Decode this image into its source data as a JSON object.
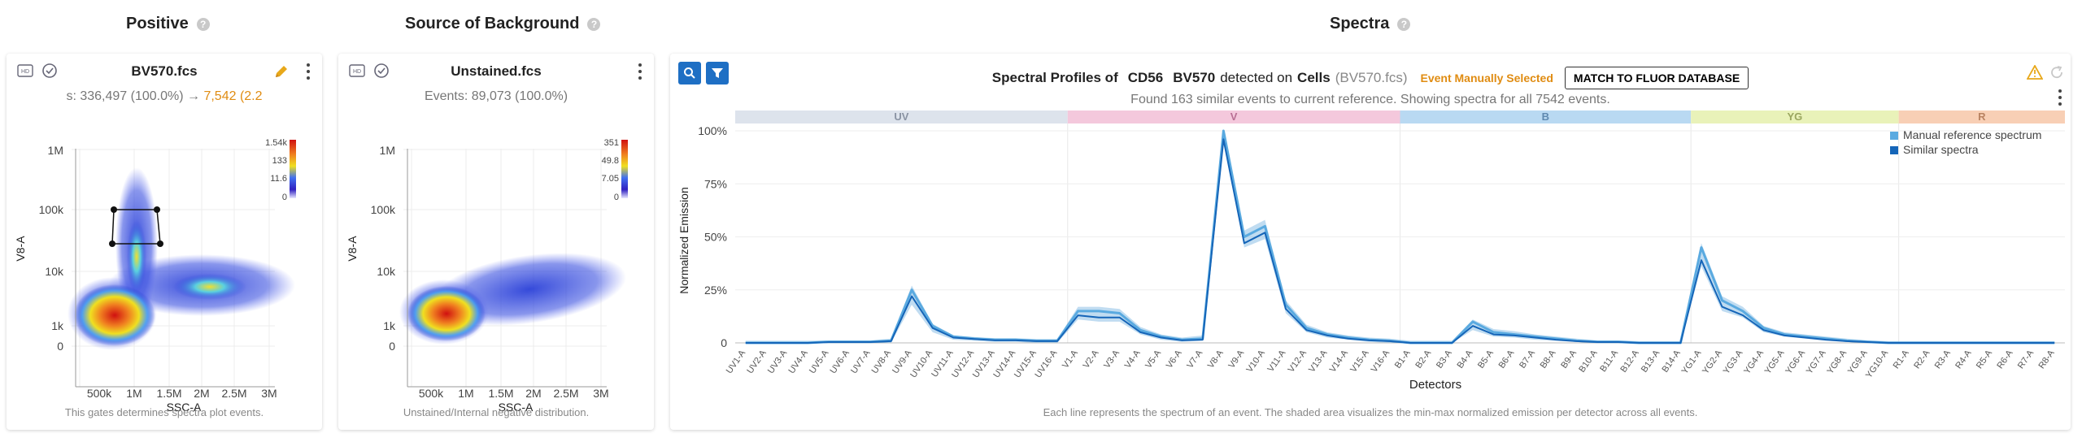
{
  "headers": {
    "positive": "Positive",
    "background": "Source of Background",
    "spectra": "Spectra"
  },
  "positive_panel": {
    "title": "BV570.fcs",
    "subtitle_prefix": "s: 336,497 (100.0%) → ",
    "subtitle_highlight": "7,542 (2.2",
    "footer": "This gates determines spectra plot events.",
    "y_axis_label": "V8-A",
    "x_axis_label": "SSC-A",
    "y_ticks": [
      "1M",
      "100k",
      "10k",
      "1k",
      "0"
    ],
    "x_ticks": [
      "500k",
      "1M",
      "1.5M",
      "2M",
      "2.5M",
      "3M"
    ],
    "colorbar_labels": [
      "1.54k",
      "133",
      "11.6",
      "0"
    ]
  },
  "background_panel": {
    "title": "Unstained.fcs",
    "subtitle": "Events: 89,073 (100.0%)",
    "footer": "Unstained/Internal negative distribution.",
    "y_axis_label": "V8-A",
    "x_axis_label": "SSC-A",
    "y_ticks": [
      "1M",
      "100k",
      "10k",
      "1k",
      "0"
    ],
    "x_ticks": [
      "500k",
      "1M",
      "1.5M",
      "2M",
      "2.5M",
      "3M"
    ],
    "colorbar_labels": [
      "351",
      "49.8",
      "7.05",
      "0"
    ]
  },
  "spectra_panel": {
    "title_prefix": "Spectral Profiles of",
    "marker": "CD56",
    "fluor": "BV570",
    "title_mid": "detected on",
    "population": "Cells",
    "file": "(BV570.fcs)",
    "status": "Event Manually Selected",
    "match_button": "MATCH TO FLUOR DATABASE",
    "subtitle": "Found 163 similar events to current reference. Showing spectra for all 7542 events.",
    "footer": "Each line represents the spectrum of an event. The shaded area visualizes the min-max normalized emission per detector across all events.",
    "legend": [
      "Manual reference spectrum",
      "Similar spectra"
    ],
    "lasers": [
      {
        "name": "UV",
        "color": "#dde3ec",
        "text": "#8a93a3"
      },
      {
        "name": "V",
        "color": "#f4c8dc",
        "text": "#b96f94"
      },
      {
        "name": "B",
        "color": "#b9d9f2",
        "text": "#5f89b0"
      },
      {
        "name": "YG",
        "color": "#e9f2b9",
        "text": "#9aa65f"
      },
      {
        "name": "R",
        "color": "#f8cfb5",
        "text": "#b98362"
      }
    ]
  },
  "chart_data": {
    "type": "line",
    "ylabel": "Normalized Emission",
    "xlabel": "Detectors",
    "y_ticks": [
      "100%",
      "75%",
      "50%",
      "25%",
      "0"
    ],
    "ylim": [
      0,
      1
    ],
    "categories": [
      "UV1-A",
      "UV2-A",
      "UV3-A",
      "UV4-A",
      "UV5-A",
      "UV6-A",
      "UV7-A",
      "UV8-A",
      "UV9-A",
      "UV10-A",
      "UV11-A",
      "UV12-A",
      "UV13-A",
      "UV14-A",
      "UV15-A",
      "UV16-A",
      "V1-A",
      "V2-A",
      "V3-A",
      "V4-A",
      "V5-A",
      "V6-A",
      "V7-A",
      "V8-A",
      "V9-A",
      "V10-A",
      "V11-A",
      "V12-A",
      "V13-A",
      "V14-A",
      "V15-A",
      "V16-A",
      "B1-A",
      "B2-A",
      "B3-A",
      "B4-A",
      "B5-A",
      "B6-A",
      "B7-A",
      "B8-A",
      "B9-A",
      "B10-A",
      "B11-A",
      "B12-A",
      "B13-A",
      "B14-A",
      "YG1-A",
      "YG2-A",
      "YG3-A",
      "YG4-A",
      "YG5-A",
      "YG6-A",
      "YG7-A",
      "YG8-A",
      "YG9-A",
      "YG10-A",
      "R1-A",
      "R2-A",
      "R3-A",
      "R4-A",
      "R5-A",
      "R6-A",
      "R7-A",
      "R8-A"
    ],
    "laser_groups": [
      16,
      16,
      14,
      10,
      8
    ],
    "series": [
      {
        "name": "Manual reference spectrum",
        "values": [
          0,
          0,
          0,
          0,
          0.005,
          0.005,
          0.005,
          0.01,
          0.25,
          0.08,
          0.03,
          0.02,
          0.015,
          0.015,
          0.01,
          0.01,
          0.15,
          0.15,
          0.14,
          0.06,
          0.03,
          0.015,
          0.02,
          1.0,
          0.5,
          0.55,
          0.18,
          0.07,
          0.04,
          0.025,
          0.015,
          0.01,
          0,
          0,
          0,
          0.1,
          0.05,
          0.04,
          0.03,
          0.02,
          0.01,
          0.005,
          0.005,
          0,
          0,
          0,
          0.45,
          0.2,
          0.15,
          0.07,
          0.04,
          0.03,
          0.02,
          0.01,
          0.005,
          0,
          0,
          0,
          0,
          0,
          0,
          0,
          0,
          0
        ]
      },
      {
        "values": [
          0,
          0,
          0,
          0,
          0.004,
          0.004,
          0.004,
          0.008,
          0.22,
          0.07,
          0.025,
          0.018,
          0.012,
          0.012,
          0.008,
          0.008,
          0.13,
          0.12,
          0.12,
          0.05,
          0.025,
          0.012,
          0.015,
          0.96,
          0.47,
          0.52,
          0.16,
          0.06,
          0.035,
          0.02,
          0.012,
          0.008,
          0,
          0,
          0,
          0.08,
          0.04,
          0.035,
          0.025,
          0.015,
          0.008,
          0.004,
          0.004,
          0,
          0,
          0,
          0.39,
          0.17,
          0.13,
          0.06,
          0.035,
          0.025,
          0.015,
          0.008,
          0.004,
          0,
          0,
          0,
          0,
          0,
          0,
          0,
          0,
          0
        ]
      }
    ],
    "band_min": [
      0,
      0,
      0,
      0,
      0,
      0,
      0,
      0,
      0.18,
      0.05,
      0.015,
      0.01,
      0.005,
      0.005,
      0,
      0,
      0.11,
      0.1,
      0.1,
      0.04,
      0.015,
      0.005,
      0.01,
      0.94,
      0.45,
      0.49,
      0.14,
      0.05,
      0.025,
      0.015,
      0.005,
      0,
      0,
      0,
      0,
      0.06,
      0.03,
      0.025,
      0.015,
      0.01,
      0.004,
      0,
      0,
      0,
      0,
      0,
      0.36,
      0.15,
      0.12,
      0.05,
      0.03,
      0.02,
      0.01,
      0.004,
      0,
      0,
      0,
      0,
      0,
      0,
      0,
      0,
      0,
      0
    ],
    "band_max": [
      0.01,
      0.01,
      0.01,
      0.01,
      0.012,
      0.012,
      0.012,
      0.02,
      0.27,
      0.09,
      0.035,
      0.028,
      0.022,
      0.022,
      0.018,
      0.018,
      0.17,
      0.17,
      0.16,
      0.075,
      0.04,
      0.025,
      0.035,
      1.0,
      0.53,
      0.58,
      0.2,
      0.085,
      0.05,
      0.035,
      0.025,
      0.02,
      0.01,
      0.01,
      0.01,
      0.11,
      0.065,
      0.055,
      0.04,
      0.03,
      0.02,
      0.012,
      0.012,
      0.008,
      0.008,
      0.008,
      0.47,
      0.22,
      0.17,
      0.08,
      0.05,
      0.04,
      0.03,
      0.02,
      0.012,
      0.008,
      0.008,
      0.008,
      0.008,
      0.008,
      0.008,
      0.008,
      0.008,
      0.008
    ]
  }
}
